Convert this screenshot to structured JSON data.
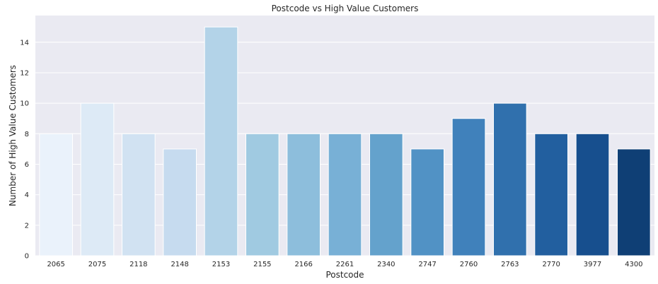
{
  "chart_data": {
    "type": "bar",
    "title": "Postcode vs High Value Customers",
    "xlabel": "Postcode",
    "ylabel": "Number of High Value Customers",
    "categories": [
      "2065",
      "2075",
      "2118",
      "2148",
      "2153",
      "2155",
      "2166",
      "2261",
      "2340",
      "2747",
      "2760",
      "2763",
      "2770",
      "3977",
      "4300"
    ],
    "values": [
      8,
      10,
      8,
      7,
      15,
      8,
      8,
      8,
      8,
      7,
      9,
      10,
      8,
      8,
      7
    ],
    "ylim": [
      0,
      15.75
    ],
    "yticks": [
      0,
      2,
      4,
      6,
      8,
      10,
      12,
      14
    ],
    "grid": true,
    "colors": [
      "#eaf2fb",
      "#ddeaf6",
      "#d1e2f2",
      "#c6dbef",
      "#b3d3e8",
      "#a0cae1",
      "#8dbedc",
      "#78b0d6",
      "#64a2cc",
      "#5192c5",
      "#4081bb",
      "#3070ad",
      "#225f9f",
      "#174f8e",
      "#0f3f75"
    ],
    "background_color": "#eaeaf2",
    "grid_color": "#ffffff"
  }
}
